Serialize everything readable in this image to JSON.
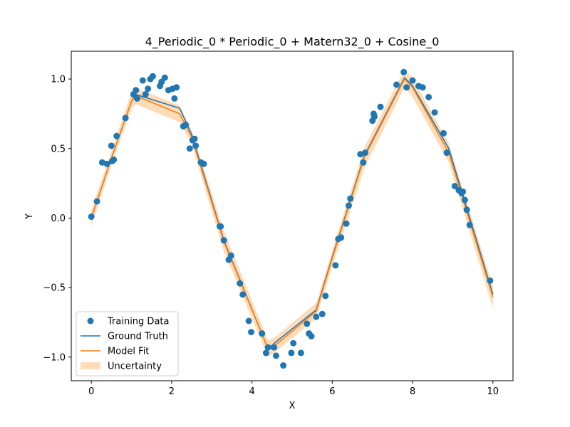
{
  "chart_data": {
    "type": "scatter",
    "title": "4_Periodic_0 * Periodic_0 + Matern32_0 + Cosine_0",
    "xlabel": "X",
    "ylabel": "Y",
    "xlim": [
      -0.5,
      10.5
    ],
    "ylim": [
      -1.17,
      1.2
    ],
    "xticks": [
      0,
      2,
      4,
      6,
      8,
      10
    ],
    "yticks": [
      -1.0,
      -0.5,
      0.0,
      0.5,
      1.0
    ],
    "xtick_labels": [
      "0",
      "2",
      "4",
      "6",
      "8",
      "10"
    ],
    "ytick_labels": [
      "−1.0",
      "−0.5",
      "0.0",
      "0.5",
      "1.0"
    ],
    "legend_position": "lower-left",
    "grid": false,
    "colors": {
      "training": "#1f77b4",
      "ground_truth": "#1f77b4",
      "model_fit": "#ff7f0e",
      "uncertainty": "#ffdcb8"
    },
    "legend": [
      {
        "label": "Training Data",
        "kind": "marker",
        "color": "#1f77b4"
      },
      {
        "label": "Ground Truth",
        "kind": "line",
        "color": "#1f77b4"
      },
      {
        "label": "Model Fit",
        "kind": "line",
        "color": "#ff7f0e"
      },
      {
        "label": "Uncertainty",
        "kind": "patch",
        "color": "#ffdcb8"
      }
    ],
    "training_data": {
      "x": [
        0.0,
        0.14,
        0.27,
        0.39,
        0.5,
        0.52,
        0.56,
        0.63,
        0.85,
        1.05,
        1.11,
        1.14,
        1.28,
        1.35,
        1.41,
        1.47,
        1.53,
        1.71,
        1.75,
        1.83,
        1.92,
        2.02,
        2.07,
        2.12,
        2.29,
        2.35,
        2.45,
        2.52,
        2.57,
        2.6,
        2.73,
        2.8,
        3.2,
        3.22,
        3.3,
        3.42,
        3.48,
        3.7,
        3.77,
        3.92,
        3.98,
        4.25,
        4.35,
        4.4,
        4.55,
        4.6,
        4.78,
        4.98,
        5.03,
        5.22,
        5.37,
        5.42,
        5.48,
        5.6,
        5.75,
        5.83,
        6.08,
        6.15,
        6.22,
        6.35,
        6.41,
        6.45,
        6.7,
        6.77,
        6.82,
        7.0,
        7.03,
        7.05,
        7.2,
        7.6,
        7.78,
        7.85,
        8.0,
        8.15,
        8.25,
        8.4,
        8.55,
        8.77,
        8.85,
        9.05,
        9.15,
        9.22,
        9.25,
        9.3,
        9.35,
        9.42,
        9.93
      ],
      "y": [
        0.01,
        0.12,
        0.4,
        0.39,
        0.52,
        0.41,
        0.42,
        0.59,
        0.72,
        0.89,
        0.92,
        0.86,
        0.99,
        0.89,
        0.93,
        1.0,
        1.02,
        0.95,
        0.98,
        1.01,
        0.92,
        0.93,
        0.86,
        0.94,
        0.66,
        0.67,
        0.5,
        0.56,
        0.57,
        0.52,
        0.4,
        0.39,
        -0.06,
        -0.06,
        -0.16,
        -0.3,
        -0.27,
        -0.47,
        -0.55,
        -0.74,
        -0.82,
        -0.83,
        -0.97,
        -0.93,
        -0.93,
        -0.99,
        -1.06,
        -0.97,
        -0.9,
        -0.97,
        -0.76,
        -0.83,
        -0.85,
        -0.71,
        -0.69,
        -0.56,
        -0.34,
        -0.15,
        -0.14,
        -0.04,
        0.09,
        0.14,
        0.46,
        0.4,
        0.47,
        0.7,
        0.75,
        0.73,
        0.8,
        0.96,
        1.05,
        0.94,
        0.99,
        0.95,
        0.94,
        0.87,
        0.76,
        0.61,
        0.47,
        0.23,
        0.2,
        0.18,
        0.19,
        0.13,
        0.06,
        -0.05,
        -0.45
      ]
    },
    "ground_truth": {
      "x": [
        0.0,
        0.5,
        1.0,
        1.1,
        2.2,
        2.5,
        3.3,
        4.4,
        4.6,
        5.6,
        6.0,
        6.8,
        7.8,
        8.0,
        8.9,
        10.0
      ],
      "y": [
        0.0,
        0.43,
        0.84,
        0.89,
        0.79,
        0.6,
        -0.16,
        -0.94,
        -0.89,
        -0.66,
        -0.28,
        0.45,
        1.01,
        0.95,
        0.5,
        -0.55
      ]
    },
    "model_fit": {
      "x": [
        0.0,
        0.5,
        1.0,
        1.1,
        2.2,
        2.5,
        3.3,
        4.4,
        4.6,
        5.6,
        6.0,
        6.8,
        7.8,
        8.0,
        8.9,
        10.0
      ],
      "y": [
        0.0,
        0.43,
        0.84,
        0.88,
        0.75,
        0.58,
        -0.17,
        -0.94,
        -0.91,
        -0.67,
        -0.29,
        0.44,
        1.0,
        0.94,
        0.47,
        -0.57
      ]
    },
    "uncertainty": {
      "x": [
        0.0,
        0.5,
        1.0,
        1.1,
        2.2,
        2.5,
        3.3,
        4.4,
        4.6,
        5.6,
        6.0,
        6.8,
        7.8,
        8.0,
        8.9,
        10.0
      ],
      "lower": [
        -0.06,
        0.38,
        0.78,
        0.82,
        0.69,
        0.53,
        -0.24,
        -1.0,
        -0.96,
        -0.72,
        -0.35,
        0.36,
        0.94,
        0.87,
        0.4,
        -0.65
      ],
      "upper": [
        0.06,
        0.48,
        0.91,
        0.94,
        0.81,
        0.63,
        -0.09,
        -0.88,
        -0.85,
        -0.61,
        -0.23,
        0.51,
        1.07,
        1.01,
        0.54,
        -0.49
      ]
    }
  }
}
